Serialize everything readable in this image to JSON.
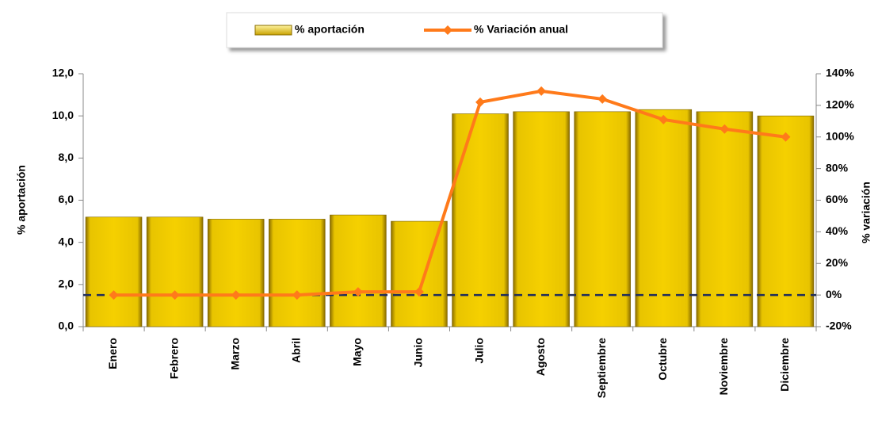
{
  "chart_data": {
    "type": "bar",
    "categories": [
      "Enero",
      "Febrero",
      "Marzo",
      "Abril",
      "Mayo",
      "Junio",
      "Julio",
      "Agosto",
      "Septiembre",
      "Octubre",
      "Noviembre",
      "Diciembre"
    ],
    "series": [
      {
        "name": "% aportación",
        "color": "#f5d000",
        "type": "bar",
        "values": [
          5.2,
          5.2,
          5.1,
          5.1,
          5.3,
          5.0,
          10.1,
          10.2,
          10.2,
          10.3,
          10.2,
          10.0
        ]
      },
      {
        "name": "% Variación anual",
        "color": "#ff7a1a",
        "type": "line",
        "axis": "y2",
        "values": [
          0,
          0,
          0,
          0,
          2,
          2,
          122,
          129,
          124,
          111,
          105,
          100
        ]
      }
    ],
    "y_label": "% aportación",
    "y2_label": "% variación",
    "ylim": [
      0,
      12
    ],
    "yticks": [
      {
        "value": 0,
        "label": "0,0"
      },
      {
        "value": 2,
        "label": "2,0"
      },
      {
        "value": 4,
        "label": "4,0"
      },
      {
        "value": 6,
        "label": "6,0"
      },
      {
        "value": 8,
        "label": "8,0"
      },
      {
        "value": 10,
        "label": "10,0"
      },
      {
        "value": 12,
        "label": "12,0"
      }
    ],
    "y2lim": [
      -20,
      140
    ],
    "y2ticks": [
      {
        "value": -20,
        "label": "-20%"
      },
      {
        "value": 0,
        "label": "0%"
      },
      {
        "value": 20,
        "label": "20%"
      },
      {
        "value": 40,
        "label": "40%"
      },
      {
        "value": 60,
        "label": "60%"
      },
      {
        "value": 80,
        "label": "80%"
      },
      {
        "value": 100,
        "label": "100%"
      },
      {
        "value": 120,
        "label": "120%"
      },
      {
        "value": 140,
        "label": "140%"
      }
    ],
    "legend": "top"
  }
}
